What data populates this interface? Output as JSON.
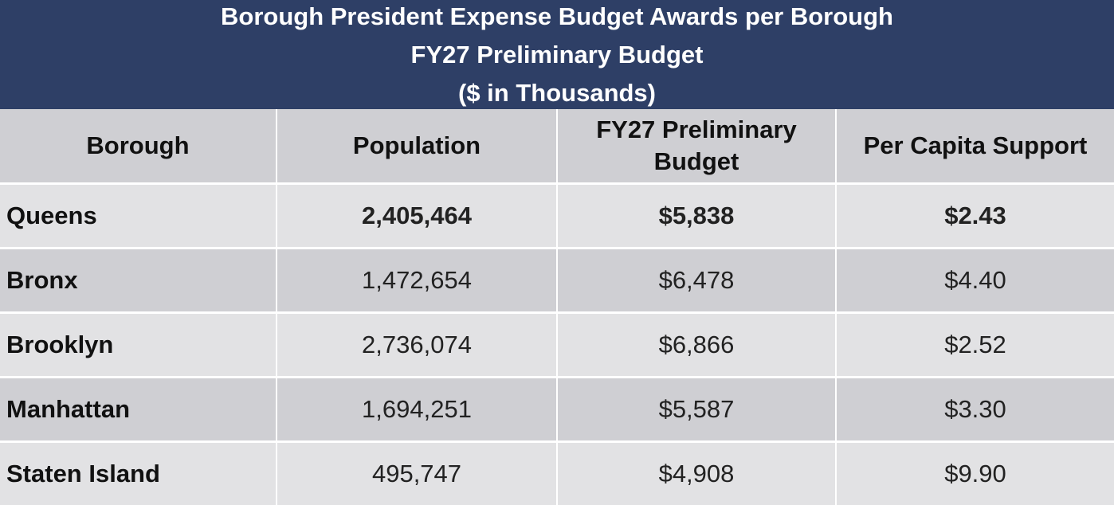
{
  "title": {
    "line1": "Borough President Expense Budget Awards per Borough",
    "line2": "FY27 Preliminary Budget",
    "line3": "($ in Thousands)"
  },
  "table": {
    "headers": [
      "Borough",
      "Population",
      "FY27 Preliminary Budget",
      "Per Capita Support"
    ],
    "rows": [
      {
        "borough": "Queens",
        "population": "2,405,464",
        "budget": "$5,838",
        "per_capita": "$2.43",
        "highlighted": true
      },
      {
        "borough": "Bronx",
        "population": "1,472,654",
        "budget": "$6,478",
        "per_capita": "$4.40",
        "highlighted": false
      },
      {
        "borough": "Brooklyn",
        "population": "2,736,074",
        "budget": "$6,866",
        "per_capita": "$2.52",
        "highlighted": false
      },
      {
        "borough": "Manhattan",
        "population": "1,694,251",
        "budget": "$5,587",
        "per_capita": "$3.30",
        "highlighted": false
      },
      {
        "borough": "Staten Island",
        "population": "495,747",
        "budget": "$4,908",
        "per_capita": "$9.90",
        "highlighted": false
      }
    ]
  },
  "colors": {
    "title_band": "#2e3f66",
    "header_row": "#cfcfd3",
    "row_light": "#e2e2e4",
    "row_dark": "#cfcfd3"
  }
}
